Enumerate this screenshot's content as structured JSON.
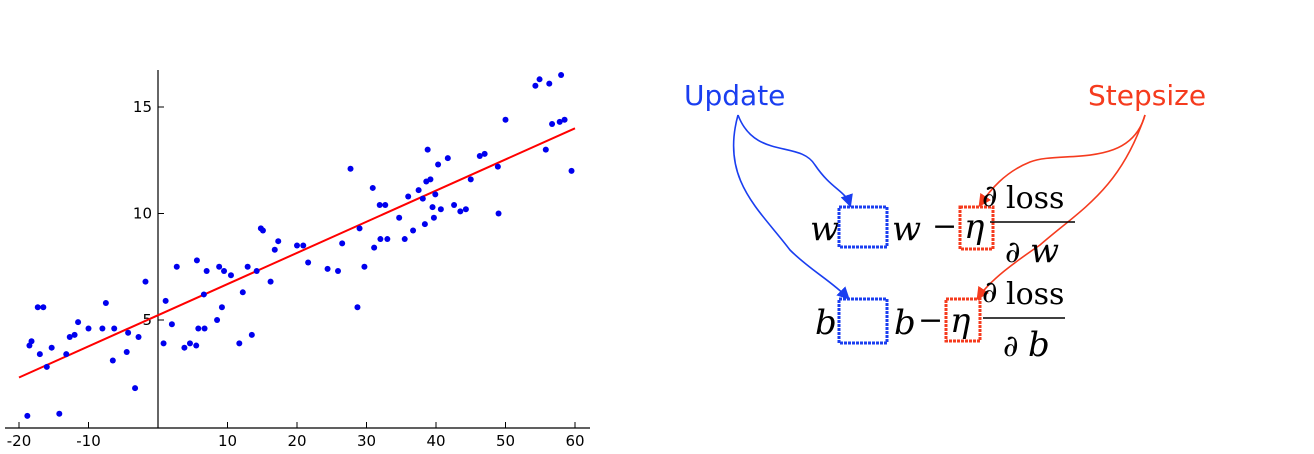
{
  "chart_data": {
    "type": "scatter",
    "title": "",
    "xlabel": "",
    "ylabel": "",
    "xlim": [
      -21,
      62
    ],
    "ylim": [
      0.5,
      17
    ],
    "grid": false,
    "x_ticks": [
      -20,
      -10,
      10,
      20,
      30,
      40,
      50,
      60
    ],
    "x_tick_labels": [
      "-20",
      "-10",
      "10",
      "20",
      "30",
      "40",
      "50",
      "60"
    ],
    "y_ticks": [
      5,
      10,
      15
    ],
    "y_tick_labels": [
      "5",
      "10",
      "15"
    ],
    "series": [
      {
        "color": "#0000ee",
        "points": [
          [
            -18.5,
            3.8
          ],
          [
            -18.2,
            4.0
          ],
          [
            -17.3,
            5.6
          ],
          [
            -16.5,
            5.6
          ],
          [
            -17.0,
            3.4
          ],
          [
            -16.0,
            2.8
          ],
          [
            -15.3,
            3.7
          ],
          [
            -14.2,
            0.6
          ],
          [
            -18.8,
            0.5
          ],
          [
            -13.2,
            3.4
          ],
          [
            -12.7,
            4.2
          ],
          [
            -12.0,
            4.3
          ],
          [
            -11.5,
            4.9
          ],
          [
            -10.0,
            4.6
          ],
          [
            -7.5,
            5.8
          ],
          [
            -8.0,
            4.6
          ],
          [
            -6.3,
            4.6
          ],
          [
            -6.5,
            3.1
          ],
          [
            -4.5,
            3.5
          ],
          [
            -4.3,
            4.4
          ],
          [
            -3.3,
            1.8
          ],
          [
            -2.8,
            4.2
          ],
          [
            -1.8,
            6.8
          ],
          [
            0.8,
            3.9
          ],
          [
            1.1,
            5.9
          ],
          [
            2.0,
            4.8
          ],
          [
            2.7,
            7.5
          ],
          [
            3.8,
            3.7
          ],
          [
            4.6,
            3.9
          ],
          [
            5.5,
            3.8
          ],
          [
            5.6,
            7.8
          ],
          [
            5.8,
            4.6
          ],
          [
            6.7,
            4.6
          ],
          [
            6.6,
            6.2
          ],
          [
            7.0,
            7.3
          ],
          [
            8.5,
            5.0
          ],
          [
            8.8,
            7.5
          ],
          [
            9.5,
            7.3
          ],
          [
            9.2,
            5.6
          ],
          [
            10.5,
            7.1
          ],
          [
            11.7,
            3.9
          ],
          [
            12.2,
            6.3
          ],
          [
            12.9,
            7.5
          ],
          [
            13.5,
            4.3
          ],
          [
            14.2,
            7.3
          ],
          [
            14.8,
            9.3
          ],
          [
            15.1,
            9.2
          ],
          [
            16.2,
            6.8
          ],
          [
            16.8,
            8.3
          ],
          [
            17.3,
            8.7
          ],
          [
            20.0,
            8.5
          ],
          [
            20.9,
            8.5
          ],
          [
            21.6,
            7.7
          ],
          [
            24.4,
            7.4
          ],
          [
            25.9,
            7.3
          ],
          [
            26.5,
            8.6
          ],
          [
            27.7,
            12.1
          ],
          [
            28.7,
            5.6
          ],
          [
            29.0,
            9.3
          ],
          [
            29.7,
            7.5
          ],
          [
            30.9,
            11.2
          ],
          [
            31.1,
            8.4
          ],
          [
            31.9,
            10.4
          ],
          [
            32.0,
            8.8
          ],
          [
            32.7,
            10.4
          ],
          [
            33.0,
            8.8
          ],
          [
            34.7,
            9.8
          ],
          [
            35.5,
            8.8
          ],
          [
            36.0,
            10.8
          ],
          [
            36.7,
            9.2
          ],
          [
            37.5,
            11.1
          ],
          [
            38.1,
            10.7
          ],
          [
            38.6,
            11.5
          ],
          [
            38.8,
            13.0
          ],
          [
            38.4,
            9.5
          ],
          [
            39.2,
            11.6
          ],
          [
            39.5,
            10.3
          ],
          [
            39.9,
            10.9
          ],
          [
            39.7,
            9.8
          ],
          [
            40.3,
            12.3
          ],
          [
            40.7,
            10.2
          ],
          [
            41.7,
            12.6
          ],
          [
            42.6,
            10.4
          ],
          [
            43.5,
            10.1
          ],
          [
            44.3,
            10.2
          ],
          [
            45.0,
            11.6
          ],
          [
            46.3,
            12.7
          ],
          [
            47.0,
            12.8
          ],
          [
            48.9,
            12.2
          ],
          [
            49.0,
            10.0
          ],
          [
            50.0,
            14.4
          ],
          [
            54.3,
            16.0
          ],
          [
            54.9,
            16.3
          ],
          [
            55.8,
            13.0
          ],
          [
            56.3,
            16.1
          ],
          [
            56.7,
            14.2
          ],
          [
            57.8,
            14.3
          ],
          [
            58.0,
            16.5
          ],
          [
            58.5,
            14.4
          ],
          [
            59.5,
            12.0
          ]
        ]
      },
      {
        "type": "line",
        "color": "#ff0000",
        "x": [
          -20,
          60
        ],
        "y": [
          2.3,
          14.0
        ]
      }
    ]
  },
  "diagram": {
    "update_label": "Update",
    "stepsize_label": "Stepsize",
    "update_color": "#1a3ef0",
    "stepsize_color": "#f53b1e",
    "row1": {
      "param": "w",
      "rhs_param": "w",
      "minus": "−",
      "eta": "η",
      "partial": "∂",
      "loss": "loss",
      "denom": "w"
    },
    "row2": {
      "param": "b",
      "rhs_param": "b",
      "minus": "−",
      "eta": "η",
      "partial": "∂",
      "loss": "loss",
      "denom": "b"
    }
  }
}
